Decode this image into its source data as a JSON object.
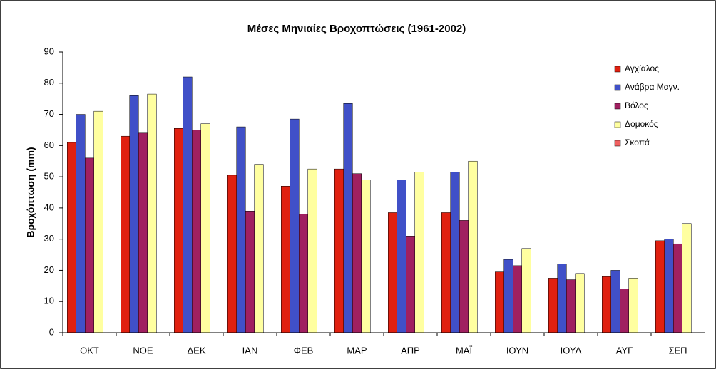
{
  "chart_data": {
    "type": "bar",
    "title": "Μέσες Μηνιαίες Βροχοπτώσεις (1961-2002)",
    "ylabel": "Βροχόπτωση (mm)",
    "categories": [
      "ΟΚΤ",
      "ΝΟΕ",
      "ΔΕΚ",
      "ΙΑΝ",
      "ΦΕΒ",
      "ΜΑΡ",
      "ΑΠΡ",
      "ΜΑΪ",
      "ΙΟΥΝ",
      "ΙΟΥΛ",
      "ΑΥΓ",
      "ΣΕΠ"
    ],
    "series": [
      {
        "name": "Αγχίαλος",
        "color": "#e02010",
        "values": [
          61,
          63,
          65.5,
          50.5,
          47,
          52.5,
          38.5,
          38.5,
          19.5,
          17.5,
          18,
          29.5
        ]
      },
      {
        "name": "Ανάβρα Μαγν.",
        "color": "#4050c8",
        "values": [
          70,
          76,
          82,
          66,
          68.5,
          73.5,
          49,
          51.5,
          23.5,
          22,
          20,
          30
        ]
      },
      {
        "name": "Βόλος",
        "color": "#a02060",
        "values": [
          56,
          64,
          65,
          39,
          38,
          51,
          31,
          36,
          21.5,
          17,
          14,
          28.5
        ]
      },
      {
        "name": "Δομοκός",
        "color": "#ffffa0",
        "values": [
          71,
          76.5,
          67,
          54,
          52.5,
          49,
          51.5,
          55,
          27,
          19,
          17.5,
          35
        ]
      },
      {
        "name": "Σκοπά",
        "color": "#f06060",
        "values": [
          0,
          0,
          0,
          0,
          0,
          0,
          0,
          0,
          0,
          0,
          0,
          0
        ]
      }
    ],
    "ylim": [
      0,
      90
    ],
    "yticks": [
      0,
      10,
      20,
      30,
      40,
      50,
      60,
      70,
      80,
      90
    ],
    "grid": false,
    "legend": "right"
  }
}
